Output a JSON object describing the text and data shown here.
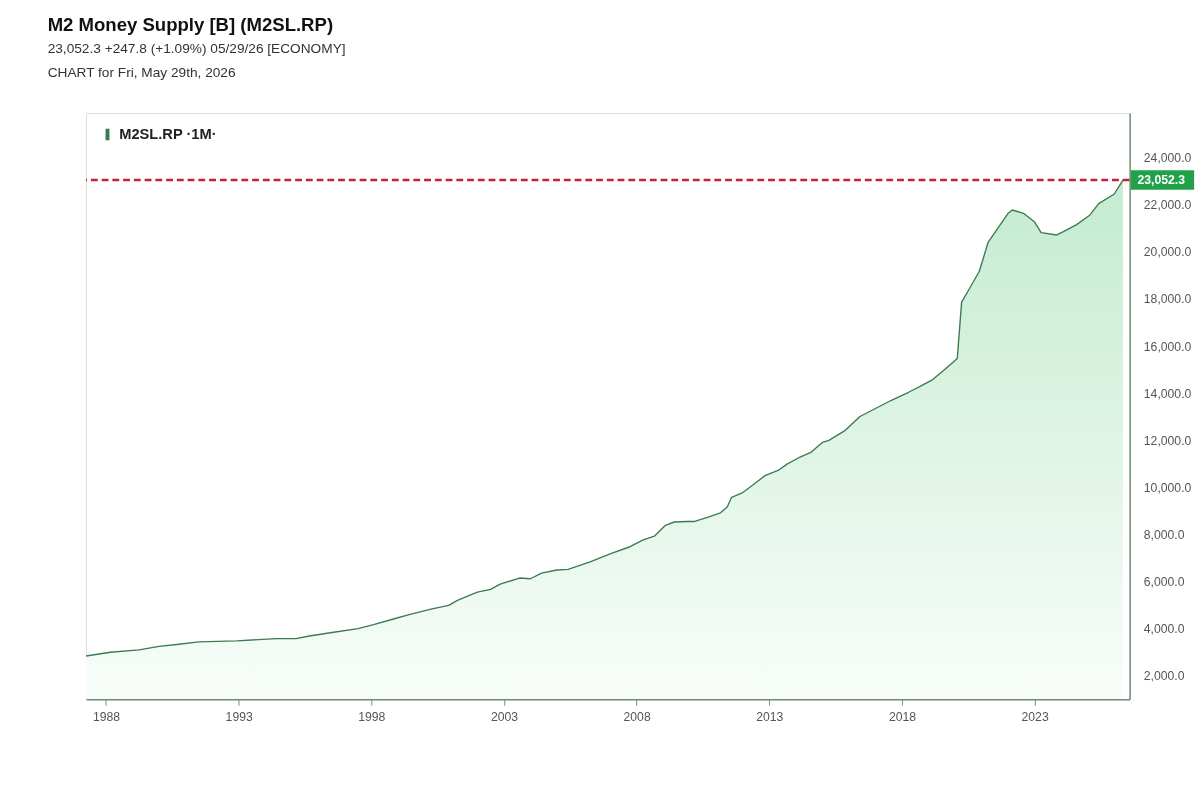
{
  "chart_data": {
    "type": "area",
    "title": "M2 Money Supply [B] (M2SL.RP)",
    "subtitle": "23,052.3 +247.8 (+1.09%) 05/29/26 [ECONOMY]",
    "annotations": [
      "CHART for Fri, May 29th, 2026"
    ],
    "x": [
      "1987-04",
      "1988-03",
      "1989-04",
      "1990-01",
      "1990-10",
      "1991-07",
      "1992-12",
      "1994-06",
      "1995-03",
      "1995-09",
      "1996-08",
      "1997-07",
      "1998-02",
      "1998-11",
      "1999-07",
      "2000-04",
      "2000-12",
      "2001-04",
      "2001-08",
      "2002-01",
      "2002-07",
      "2002-11",
      "2003-08",
      "2004-01",
      "2004-06",
      "2005-01",
      "2005-06",
      "2006-04",
      "2007-01",
      "2007-10",
      "2008-04",
      "2008-09",
      "2009-02",
      "2009-06",
      "2009-12",
      "2010-03",
      "2010-09",
      "2011-03",
      "2011-06",
      "2011-08",
      "2012-01",
      "2012-05",
      "2012-11",
      "2013-05",
      "2013-09",
      "2014-03",
      "2014-08",
      "2015-01",
      "2015-04",
      "2015-11",
      "2016-06",
      "2017-01",
      "2017-08",
      "2018-04",
      "2018-09",
      "2019-03",
      "2019-09",
      "2020-02",
      "2020-04",
      "2020-07",
      "2020-12",
      "2021-04",
      "2021-08",
      "2022-01",
      "2022-03",
      "2022-08",
      "2023-01",
      "2023-04",
      "2023-11",
      "2024-02",
      "2024-08",
      "2025-02",
      "2025-06",
      "2026-01",
      "2026-05"
    ],
    "series": [
      {
        "name": "M2SL.RP ·1M·",
        "color": "#3d7a50",
        "values": [
          2840,
          3000,
          3100,
          3250,
          3340,
          3440,
          3480,
          3580,
          3580,
          3690,
          3850,
          4000,
          4170,
          4410,
          4620,
          4830,
          4990,
          5200,
          5360,
          5550,
          5670,
          5880,
          6150,
          6120,
          6360,
          6490,
          6520,
          6840,
          7180,
          7480,
          7770,
          7930,
          8390,
          8530,
          8550,
          8550,
          8730,
          8920,
          9170,
          9580,
          9780,
          10060,
          10500,
          10720,
          10990,
          11290,
          11500,
          11910,
          12000,
          12400,
          13010,
          13350,
          13690,
          14040,
          14280,
          14580,
          15060,
          15470,
          17870,
          18350,
          19180,
          20410,
          20960,
          21640,
          21780,
          21640,
          21270,
          20820,
          20720,
          20860,
          21160,
          21570,
          22050,
          22460,
          23052.3
        ]
      }
    ],
    "xlim": [
      "1987-04",
      "2026-08"
    ],
    "ylim": [
      1000,
      25900
    ],
    "xticks": [
      "1988",
      "1993",
      "1998",
      "2003",
      "2008",
      "2013",
      "2018",
      "2023"
    ],
    "yticks": [
      {
        "value": 2000,
        "label": "2,000.0"
      },
      {
        "value": 4000,
        "label": "4,000.0"
      },
      {
        "value": 6000,
        "label": "6,000.0"
      },
      {
        "value": 8000,
        "label": "8,000.0"
      },
      {
        "value": 10000,
        "label": "10,000.0"
      },
      {
        "value": 12000,
        "label": "12,000.0"
      },
      {
        "value": 14000,
        "label": "14,000.0"
      },
      {
        "value": 16000,
        "label": "16,000.0"
      },
      {
        "value": 18000,
        "label": "18,000.0"
      },
      {
        "value": 20000,
        "label": "20,000.0"
      },
      {
        "value": 22000,
        "label": "22,000.0"
      },
      {
        "value": 24000,
        "label": "24,000.0"
      }
    ],
    "ref_lines": [
      {
        "axis": "y",
        "value": 23052.3,
        "label": "23,052.3",
        "color": "#c62038",
        "line_style": "dashed"
      }
    ],
    "grid": false,
    "legend": "top left"
  }
}
